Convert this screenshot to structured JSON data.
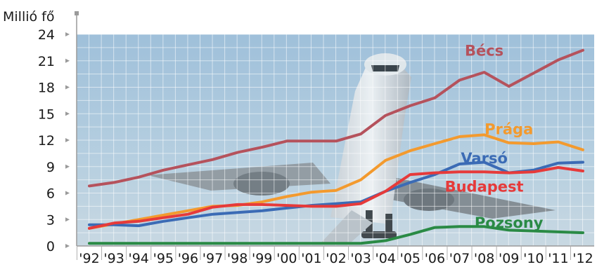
{
  "chart_data": {
    "type": "line",
    "title": "",
    "xlabel": "",
    "ylabel": "Millió fő",
    "ylim": [
      0,
      24
    ],
    "yticks": [
      0,
      3,
      6,
      9,
      12,
      15,
      18,
      21,
      24
    ],
    "categories": [
      "'92",
      "'93",
      "'94",
      "'95",
      "'96",
      "'97",
      "'98",
      "'99",
      "'00",
      "'01",
      "'02",
      "'03",
      "'04",
      "'05",
      "'06",
      "'07",
      "'08",
      "'09",
      "'10",
      "'11",
      "'12"
    ],
    "grid": true,
    "legend": "inline-labels",
    "background": "photo of airplane taking off",
    "series": [
      {
        "name": "Bécs",
        "color": "#b5525c",
        "label_x": "'08",
        "label_y": 22.2,
        "values": [
          6.8,
          7.2,
          7.8,
          8.6,
          9.2,
          9.8,
          10.6,
          11.2,
          11.9,
          11.9,
          11.9,
          12.7,
          14.8,
          15.9,
          16.8,
          18.8,
          19.7,
          18.1,
          19.6,
          21.1,
          22.2
        ]
      },
      {
        "name": "Prága",
        "color": "#f39a2e",
        "label_x": "'09",
        "label_y": 13.3,
        "values": [
          2.0,
          2.5,
          3.0,
          3.5,
          4.0,
          4.5,
          4.6,
          5.0,
          5.6,
          6.1,
          6.3,
          7.5,
          9.7,
          10.8,
          11.6,
          12.4,
          12.6,
          11.7,
          11.6,
          11.8,
          10.9
        ]
      },
      {
        "name": "Varsó",
        "color": "#3b6bb5",
        "label_x": "'08",
        "label_y": 10.0,
        "values": [
          2.4,
          2.4,
          2.3,
          2.8,
          3.2,
          3.6,
          3.8,
          4.0,
          4.3,
          4.6,
          4.8,
          5.0,
          6.2,
          7.2,
          8.1,
          9.3,
          9.5,
          8.3,
          8.6,
          9.4,
          9.5
        ]
      },
      {
        "name": "Budapest",
        "color": "#e63a3a",
        "label_x": "'08",
        "label_y": 6.8,
        "values": [
          2.0,
          2.6,
          2.8,
          3.2,
          3.6,
          4.4,
          4.7,
          4.7,
          4.6,
          4.5,
          4.5,
          4.8,
          6.2,
          8.1,
          8.3,
          8.4,
          8.4,
          8.3,
          8.4,
          8.9,
          8.5
        ]
      },
      {
        "name": "Pozsony",
        "color": "#2a8a45",
        "label_x": "'09",
        "label_y": 2.7,
        "values": [
          0.3,
          0.3,
          0.3,
          0.3,
          0.3,
          0.3,
          0.3,
          0.3,
          0.3,
          0.3,
          0.3,
          0.3,
          0.6,
          1.3,
          2.1,
          2.2,
          2.2,
          1.8,
          1.7,
          1.6,
          1.5
        ]
      }
    ]
  }
}
